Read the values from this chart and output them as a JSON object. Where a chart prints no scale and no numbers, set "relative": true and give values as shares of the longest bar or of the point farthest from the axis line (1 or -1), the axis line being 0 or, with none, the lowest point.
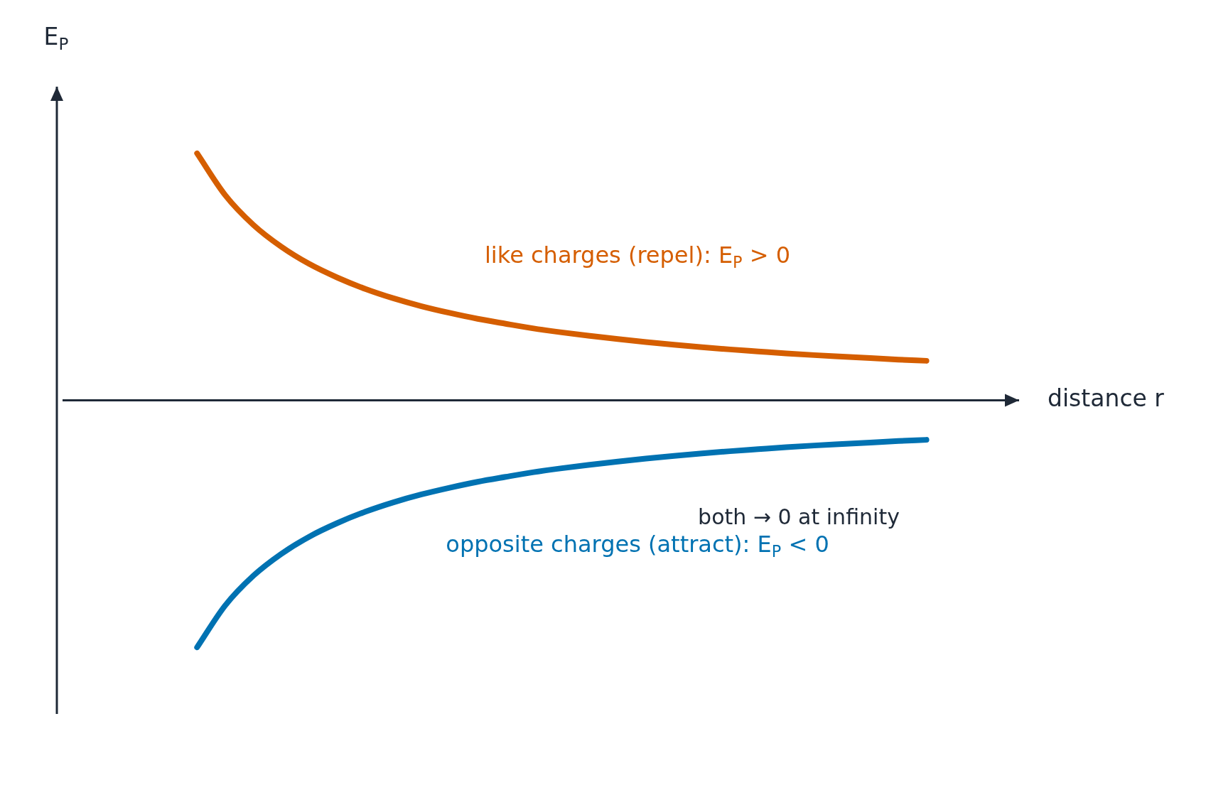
{
  "chart_data": {
    "type": "line",
    "relative": true,
    "xlabel": "distance r",
    "ylabel": "E$_{P}$",
    "categories": [
      null,
      null,
      null,
      null,
      null,
      null,
      null,
      null,
      null,
      null,
      null,
      null,
      null,
      null,
      null,
      null,
      null,
      null,
      null,
      null,
      null,
      null,
      null,
      null,
      null,
      null,
      null,
      null,
      null,
      null,
      null,
      null,
      null,
      null,
      null
    ],
    "series": [
      {
        "name": "like charges (repel): E$_{P}$ > 0",
        "color": "#d55e00",
        "values": [
          null,
          null,
          null,
          null,
          null,
          1.0,
          0.831,
          0.711,
          0.622,
          0.552,
          0.497,
          0.451,
          0.413,
          0.381,
          0.354,
          0.33,
          0.31,
          0.291,
          0.275,
          0.261,
          0.248,
          0.236,
          0.225,
          0.215,
          0.206,
          0.198,
          0.19,
          0.183,
          0.177,
          0.171,
          0.165,
          0.16,
          null,
          null,
          null
        ]
      },
      {
        "name": "opposite charges (attract): E$_{P}$ < 0",
        "color": "#0072b2",
        "values": [
          null,
          null,
          null,
          null,
          null,
          -1.0,
          -0.831,
          -0.711,
          -0.622,
          -0.552,
          -0.497,
          -0.451,
          -0.413,
          -0.381,
          -0.354,
          -0.33,
          -0.31,
          -0.291,
          -0.275,
          -0.261,
          -0.248,
          -0.236,
          -0.225,
          -0.215,
          -0.206,
          -0.198,
          -0.19,
          -0.183,
          -0.177,
          -0.171,
          -0.165,
          -0.16,
          null,
          null,
          null
        ]
      }
    ],
    "annotations": [
      "both → 0 at infinity"
    ],
    "marker": "none",
    "line_style": "solid"
  }
}
